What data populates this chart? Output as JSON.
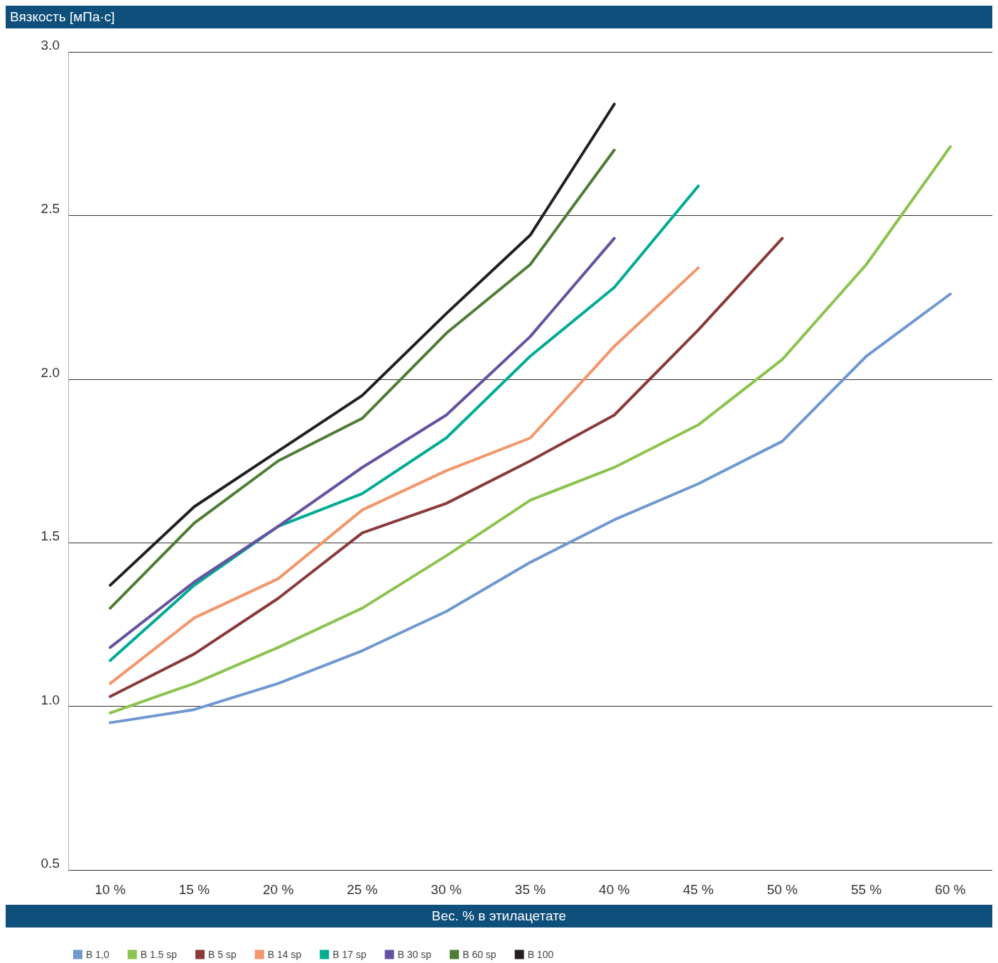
{
  "chart_data": {
    "type": "line",
    "ylabel": "Вязкость [мПа·с]",
    "xlabel": "Вес. % в этилацетате",
    "categories": [
      "10 %",
      "15 %",
      "20 %",
      "25 %",
      "30 %",
      "35 %",
      "40 %",
      "45 %",
      "50 %",
      "55 %",
      "60 %"
    ],
    "ylim": [
      0.5,
      3.0
    ],
    "yticks": [
      {
        "value": 0.5,
        "label": "0.5"
      },
      {
        "value": 1,
        "label": "1.0"
      },
      {
        "value": 1.5,
        "label": "1.5"
      },
      {
        "value": 2,
        "label": "2.0"
      },
      {
        "value": 2.5,
        "label": "2.5"
      },
      {
        "value": 3,
        "label": "3.0"
      }
    ],
    "grid": "y",
    "legend": "bottom left",
    "marker": "none",
    "line_style": "solid",
    "series": [
      {
        "name": "B 1,0",
        "color": "#6f98d0",
        "values": [
          0.95,
          0.99,
          1.07,
          1.17,
          1.29,
          1.44,
          1.57,
          1.68,
          1.81,
          2.07,
          2.26
        ]
      },
      {
        "name": "B 1.5 sp",
        "color": "#8bc34f",
        "values": [
          0.98,
          1.07,
          1.18,
          1.3,
          1.46,
          1.63,
          1.73,
          1.86,
          2.06,
          2.35,
          2.71
        ]
      },
      {
        "name": "B 5 sp",
        "color": "#8b3a3a",
        "values": [
          1.03,
          1.16,
          1.33,
          1.53,
          1.62,
          1.75,
          1.89,
          2.15,
          2.43,
          null,
          null
        ]
      },
      {
        "name": "B 14 sp",
        "color": "#f4956a",
        "values": [
          1.07,
          1.27,
          1.39,
          1.6,
          1.72,
          1.82,
          2.1,
          2.34,
          null,
          null,
          null
        ]
      },
      {
        "name": "B 17 sp",
        "color": "#00ab94",
        "values": [
          1.14,
          1.37,
          1.55,
          1.65,
          1.82,
          2.07,
          2.28,
          2.59,
          null,
          null,
          null
        ]
      },
      {
        "name": "B 30 sp",
        "color": "#6652a0",
        "values": [
          1.18,
          1.38,
          1.55,
          1.73,
          1.89,
          2.13,
          2.43,
          null,
          null,
          null,
          null
        ]
      },
      {
        "name": "B 60 sp",
        "color": "#4e7d35",
        "values": [
          1.3,
          1.56,
          1.75,
          1.88,
          2.14,
          2.35,
          2.7,
          null,
          null,
          null,
          null
        ]
      },
      {
        "name": "B 100",
        "color": "#231f20",
        "values": [
          1.37,
          1.61,
          1.78,
          1.95,
          2.2,
          2.44,
          2.84,
          null,
          null,
          null,
          null
        ]
      }
    ]
  }
}
